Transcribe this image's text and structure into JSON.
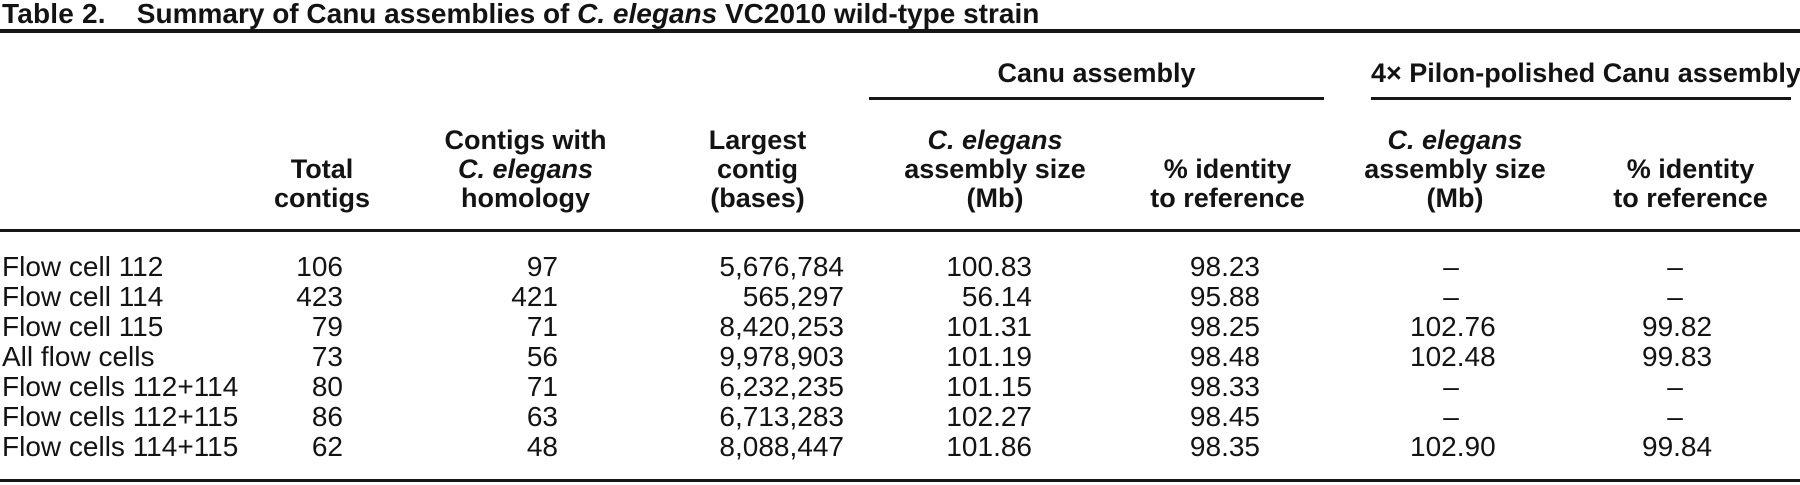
{
  "page": {
    "background": "#ffffff",
    "text_color": "#131313",
    "rule_color": "#161616"
  },
  "table_caption": {
    "label": "Table 2.",
    "prefix": "Summary of Canu assemblies of ",
    "species": "C. elegans",
    "suffix": " VC2010 wild-type strain"
  },
  "column_groups": [
    {
      "label": "Canu assembly"
    },
    {
      "label": "4× Pilon-polished Canu assembly"
    }
  ],
  "columns": {
    "row_label": {
      "lines": []
    },
    "total_contigs": {
      "lines": [
        "Total",
        "contigs"
      ]
    },
    "homology_contigs": {
      "lines": [
        "Contigs with",
        "C. elegans",
        "homology"
      ],
      "italic_line": 1
    },
    "largest_contig": {
      "lines": [
        "Largest",
        "contig",
        "(bases)"
      ]
    },
    "canu_size": {
      "lines": [
        "C. elegans",
        "assembly size",
        "(Mb)"
      ],
      "italic_line": 0
    },
    "canu_identity": {
      "lines": [
        "% identity",
        "to reference"
      ]
    },
    "pilon_size": {
      "lines": [
        "C. elegans",
        "assembly size",
        "(Mb)"
      ],
      "italic_line": 0
    },
    "pilon_identity": {
      "lines": [
        "% identity",
        "to reference"
      ]
    }
  },
  "no_data_marker": "–",
  "rows": [
    {
      "label": "Flow cell 112",
      "values": [
        "106",
        "97",
        "5,676,784",
        "100.83",
        "98.23",
        "–",
        "–"
      ]
    },
    {
      "label": "Flow cell 114",
      "values": [
        "423",
        "421",
        "565,297",
        "56.14",
        "95.88",
        "–",
        "–"
      ]
    },
    {
      "label": "Flow cell 115",
      "values": [
        "79",
        "71",
        "8,420,253",
        "101.31",
        "98.25",
        "102.76",
        "99.82"
      ]
    },
    {
      "label": "All flow cells",
      "values": [
        "73",
        "56",
        "9,978,903",
        "101.19",
        "98.48",
        "102.48",
        "99.83"
      ]
    },
    {
      "label": "Flow cells 112+114",
      "values": [
        "80",
        "71",
        "6,232,235",
        "101.15",
        "98.33",
        "–",
        "–"
      ]
    },
    {
      "label": "Flow cells 112+115",
      "values": [
        "86",
        "63",
        "6,713,283",
        "102.27",
        "98.45",
        "–",
        "–"
      ]
    },
    {
      "label": "Flow cells 114+115",
      "values": [
        "62",
        "48",
        "8,088,447",
        "101.86",
        "98.35",
        "102.90",
        "99.84"
      ]
    }
  ]
}
